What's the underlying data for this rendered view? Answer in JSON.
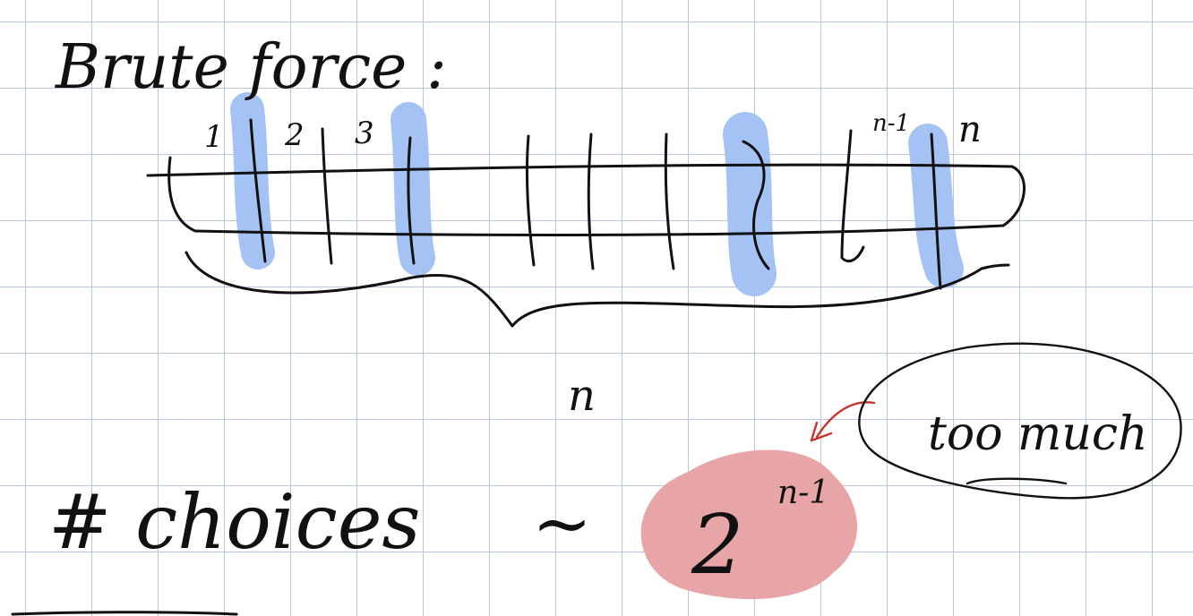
{
  "note": {
    "title": "Brute force :",
    "slot_labels": [
      "1",
      "2",
      "3",
      "n-1",
      "n"
    ],
    "brace_label": "n",
    "choices_label": "# choices",
    "tilde": "~",
    "formula_base": "2",
    "formula_exponent": "n-1",
    "callout": "too much",
    "colors": {
      "ink": "#111111",
      "grid": "#b9c6dc",
      "highlight_blue": "#a5c2f4",
      "highlight_red": "#e8a5a8",
      "arrow_red": "#c8322c"
    }
  }
}
